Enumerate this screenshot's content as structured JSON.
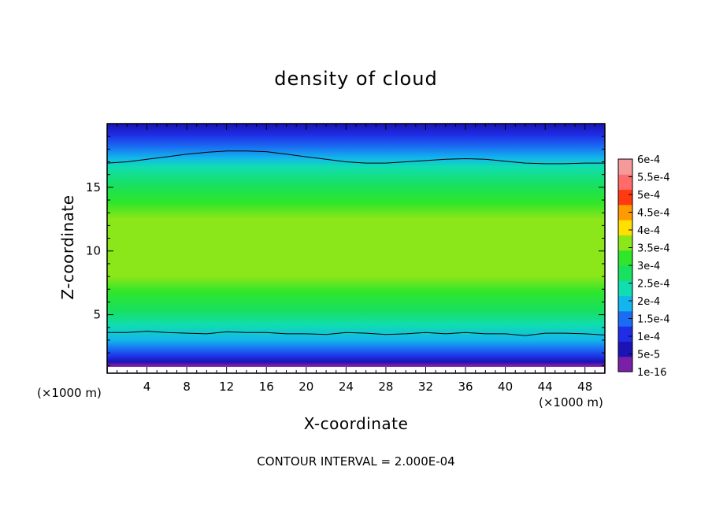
{
  "chart_data": {
    "type": "heatmap",
    "title": "density of cloud",
    "xlabel": "X-coordinate",
    "ylabel": "Z-coordinate",
    "x_unit": "(×1000 m)",
    "xlim": [
      0,
      50
    ],
    "ylim": [
      0.4,
      20
    ],
    "x_ticks": [
      4,
      8,
      12,
      16,
      20,
      24,
      28,
      32,
      36,
      40,
      44,
      48
    ],
    "y_ticks": [
      5,
      10,
      15
    ],
    "colorbar": {
      "levels": [
        "1e-16",
        "5e-5",
        "1e-4",
        "1.5e-4",
        "2e-4",
        "2.5e-4",
        "3e-4",
        "3.5e-4",
        "4e-4",
        "4.5e-4",
        "5e-4",
        "5.5e-4",
        "6e-4"
      ],
      "colors": [
        "#7a1fa8",
        "#1a14b4",
        "#1f2ee6",
        "#1a6cf2",
        "#13b6ec",
        "#10ddb0",
        "#18e060",
        "#2fe62a",
        "#8be61a",
        "#ffe000",
        "#ff9a00",
        "#ff3a10",
        "#ff6a6a",
        "#f49a9a"
      ]
    },
    "contours": [
      {
        "level": "1.5e-4",
        "z": [
          3.6,
          3.6,
          3.7,
          3.6,
          3.55,
          3.5,
          3.65,
          3.6,
          3.6,
          3.5,
          3.5,
          3.45,
          3.6,
          3.55,
          3.45,
          3.5,
          3.6,
          3.5,
          3.6,
          3.5,
          3.5,
          3.35,
          3.55,
          3.55,
          3.5,
          3.4
        ]
      },
      {
        "level": "1.5e-4",
        "z": [
          16.9,
          17.0,
          17.2,
          17.4,
          17.6,
          17.75,
          17.85,
          17.85,
          17.8,
          17.6,
          17.4,
          17.2,
          17.0,
          16.9,
          16.9,
          17.0,
          17.1,
          17.2,
          17.25,
          17.2,
          17.05,
          16.9,
          16.85,
          16.85,
          16.9,
          16.9
        ]
      }
    ],
    "contour_x_step": 2,
    "vertical_profile": [
      {
        "z": 0.4,
        "level": 0
      },
      {
        "z": 1.0,
        "level": 0
      },
      {
        "z": 1.3,
        "level": 1
      },
      {
        "z": 1.7,
        "level": 2
      },
      {
        "z": 2.3,
        "level": 3
      },
      {
        "z": 3.0,
        "level": 4
      },
      {
        "z": 4.2,
        "level": 5
      },
      {
        "z": 5.3,
        "level": 6
      },
      {
        "z": 6.8,
        "level": 7
      },
      {
        "z": 8.0,
        "level": 8
      },
      {
        "z": 12.5,
        "level": 8
      },
      {
        "z": 13.8,
        "level": 7
      },
      {
        "z": 15.2,
        "level": 6
      },
      {
        "z": 16.6,
        "level": 5
      },
      {
        "z": 17.3,
        "level": 4
      },
      {
        "z": 18.2,
        "level": 3
      },
      {
        "z": 19.1,
        "level": 2
      },
      {
        "z": 20.0,
        "level": 1
      }
    ]
  },
  "contour_interval_text": "CONTOUR INTERVAL = 2.000E-04"
}
